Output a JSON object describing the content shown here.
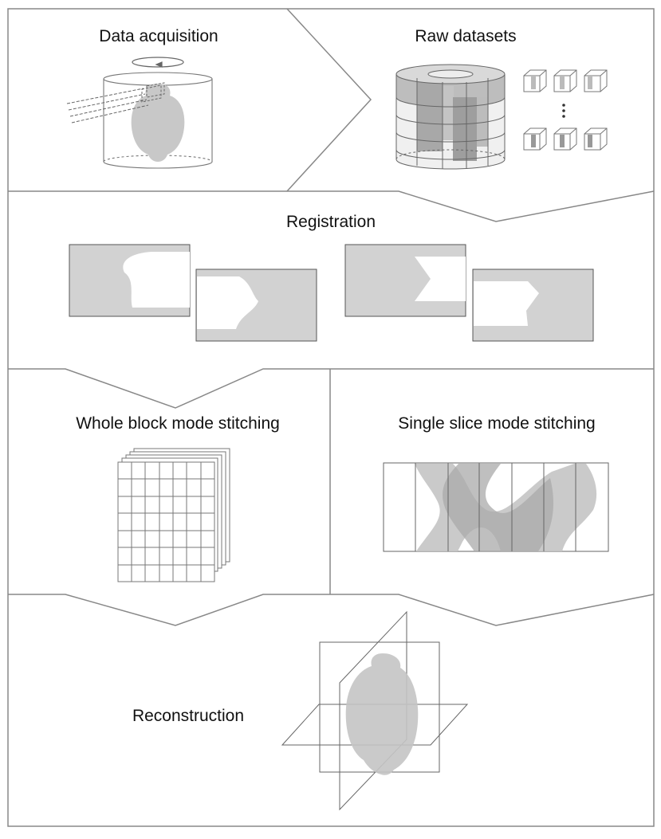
{
  "panels": {
    "acquisition": {
      "title": "Data acquisition"
    },
    "raw": {
      "title": "Raw datasets"
    },
    "registration": {
      "title": "Registration"
    },
    "whole_block": {
      "title": "Whole block mode stitching"
    },
    "single_slice": {
      "title": "Single slice mode stitching"
    },
    "reconstruction": {
      "title": "Reconstruction"
    }
  },
  "colors": {
    "frame": "#888888",
    "fill": "#cfcfcf",
    "fill_dark": "#b0b0b0",
    "line": "#555555",
    "text": "#111111"
  },
  "icons": [
    "rotation-arrow-icon",
    "laser-beam-icon",
    "brain-silhouette-icon",
    "ellipsis-icon"
  ]
}
